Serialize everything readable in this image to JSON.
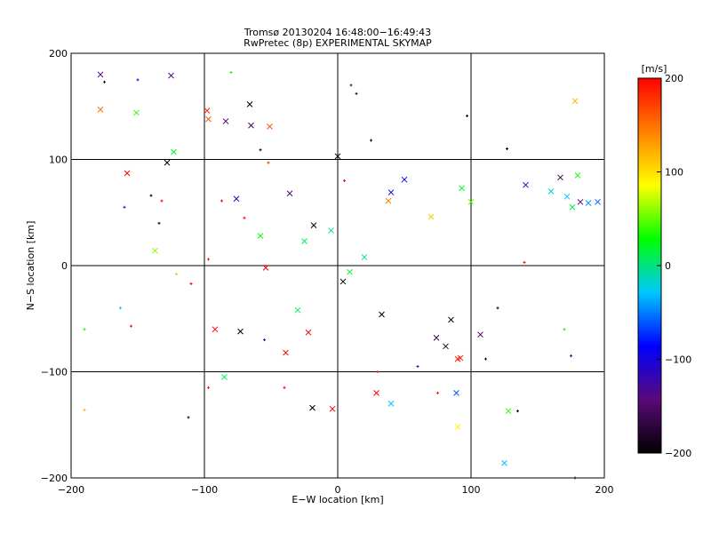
{
  "chart_data": {
    "type": "scatter",
    "title": "Tromsø 20130204 16:48:00−16:49:43",
    "subtitle": "RwPretec (8p) EXPERIMENTAL SKYMAP",
    "xlabel": "E−W location [km]",
    "ylabel": "N−S location [km]",
    "xlim": [
      -200,
      200
    ],
    "ylim": [
      -200,
      200
    ],
    "xticks": [
      -200,
      -100,
      0,
      100,
      200
    ],
    "yticks": [
      -200,
      -100,
      0,
      100,
      200
    ],
    "x_tick_labels": [
      "−200",
      "−100",
      "0",
      "100",
      "200"
    ],
    "y_tick_labels": [
      "−200",
      "−100",
      "0",
      "100",
      "200"
    ],
    "grid": true,
    "markers": [
      "cross",
      "plus"
    ],
    "colorbar": {
      "label": "[m/s]",
      "range": [
        -200,
        200
      ],
      "ticks": [
        200,
        100,
        0,
        -100,
        -200
      ],
      "tick_labels": [
        "200",
        "100",
        "0",
        "−100",
        "−200"
      ],
      "colormap": [
        "#000000",
        "#5a0a78",
        "#0000ff",
        "#00c8ff",
        "#00ff00",
        "#ffff00",
        "#ff8000",
        "#ff0000"
      ]
    },
    "points": [
      {
        "x": -178,
        "y": 180,
        "v": -140,
        "m": "x"
      },
      {
        "x": -125,
        "y": 179,
        "v": -140,
        "m": "x"
      },
      {
        "x": -178,
        "y": 147,
        "v": 150,
        "m": "x"
      },
      {
        "x": -151,
        "y": 144,
        "v": 40,
        "m": "x"
      },
      {
        "x": -98,
        "y": 146,
        "v": 180,
        "m": "x"
      },
      {
        "x": -97,
        "y": 138,
        "v": 160,
        "m": "x"
      },
      {
        "x": -66,
        "y": 152,
        "v": -200,
        "m": "x"
      },
      {
        "x": -65,
        "y": 132,
        "v": -160,
        "m": "x"
      },
      {
        "x": -51,
        "y": 131,
        "v": 170,
        "m": "x"
      },
      {
        "x": -84,
        "y": 136,
        "v": -140,
        "m": "x"
      },
      {
        "x": -158,
        "y": 87,
        "v": 200,
        "m": "x"
      },
      {
        "x": -128,
        "y": 97,
        "v": -200,
        "m": "x"
      },
      {
        "x": -123,
        "y": 107,
        "v": 20,
        "m": "x"
      },
      {
        "x": -36,
        "y": 68,
        "v": -150,
        "m": "x"
      },
      {
        "x": -76,
        "y": 63,
        "v": -110,
        "m": "x"
      },
      {
        "x": -137,
        "y": 14,
        "v": 60,
        "m": "x"
      },
      {
        "x": -18,
        "y": 38,
        "v": -200,
        "m": "x"
      },
      {
        "x": 40,
        "y": 69,
        "v": -100,
        "m": "x"
      },
      {
        "x": 50,
        "y": 81,
        "v": -90,
        "m": "x"
      },
      {
        "x": 38,
        "y": 61,
        "v": 140,
        "m": "x"
      },
      {
        "x": 70,
        "y": 46,
        "v": 110,
        "m": "x"
      },
      {
        "x": 100,
        "y": 60,
        "v": 50,
        "m": "x"
      },
      {
        "x": 93,
        "y": 73,
        "v": 20,
        "m": "x"
      },
      {
        "x": 141,
        "y": 76,
        "v": -120,
        "m": "x"
      },
      {
        "x": 167,
        "y": 83,
        "v": -170,
        "m": "x"
      },
      {
        "x": 180,
        "y": 85,
        "v": 30,
        "m": "x"
      },
      {
        "x": 182,
        "y": 60,
        "v": -140,
        "m": "x"
      },
      {
        "x": 172,
        "y": 65,
        "v": -30,
        "m": "x"
      },
      {
        "x": 176,
        "y": 55,
        "v": 10,
        "m": "x"
      },
      {
        "x": 188,
        "y": 59,
        "v": -40,
        "m": "x"
      },
      {
        "x": 195,
        "y": 60,
        "v": -60,
        "m": "x"
      },
      {
        "x": 178,
        "y": 155,
        "v": 120,
        "m": "x"
      },
      {
        "x": 0,
        "y": 103,
        "v": -190,
        "m": "x"
      },
      {
        "x": -5,
        "y": 33,
        "v": 0,
        "m": "x"
      },
      {
        "x": -54,
        "y": -2,
        "v": 200,
        "m": "x"
      },
      {
        "x": 4,
        "y": -15,
        "v": -200,
        "m": "x"
      },
      {
        "x": -92,
        "y": -60,
        "v": 200,
        "m": "x"
      },
      {
        "x": -73,
        "y": -62,
        "v": -200,
        "m": "x"
      },
      {
        "x": -22,
        "y": -63,
        "v": 200,
        "m": "x"
      },
      {
        "x": -39,
        "y": -82,
        "v": 190,
        "m": "x"
      },
      {
        "x": 33,
        "y": -46,
        "v": -200,
        "m": "x"
      },
      {
        "x": 85,
        "y": -51,
        "v": -200,
        "m": "x"
      },
      {
        "x": 74,
        "y": -68,
        "v": -170,
        "m": "x"
      },
      {
        "x": 81,
        "y": -76,
        "v": -180,
        "m": "x"
      },
      {
        "x": 90,
        "y": -88,
        "v": 190,
        "m": "x"
      },
      {
        "x": 92,
        "y": -87,
        "v": 180,
        "m": "x"
      },
      {
        "x": 107,
        "y": -65,
        "v": -160,
        "m": "x"
      },
      {
        "x": 29,
        "y": -120,
        "v": 200,
        "m": "x"
      },
      {
        "x": 89,
        "y": -120,
        "v": -60,
        "m": "x"
      },
      {
        "x": -4,
        "y": -135,
        "v": 200,
        "m": "x"
      },
      {
        "x": -19,
        "y": -134,
        "v": -200,
        "m": "x"
      },
      {
        "x": 40,
        "y": -130,
        "v": -30,
        "m": "x"
      },
      {
        "x": 128,
        "y": -137,
        "v": 40,
        "m": "x"
      },
      {
        "x": 90,
        "y": -152,
        "v": 90,
        "m": "x"
      },
      {
        "x": 125,
        "y": -186,
        "v": -30,
        "m": "x"
      },
      {
        "x": -85,
        "y": -105,
        "v": 10,
        "m": "x"
      },
      {
        "x": -25,
        "y": 23,
        "v": 10,
        "m": "x"
      },
      {
        "x": 20,
        "y": 8,
        "v": 0,
        "m": "x"
      },
      {
        "x": -58,
        "y": 28,
        "v": 30,
        "m": "x"
      },
      {
        "x": 160,
        "y": 70,
        "v": -20,
        "m": "x"
      },
      {
        "x": 9,
        "y": -6,
        "v": 20,
        "m": "x"
      },
      {
        "x": -30,
        "y": -42,
        "v": 10,
        "m": "x"
      },
      {
        "x": -150,
        "y": 175,
        "v": -80,
        "m": "+"
      },
      {
        "x": -134,
        "y": 40,
        "v": -190,
        "m": "+"
      },
      {
        "x": -175,
        "y": 173,
        "v": -200,
        "m": "+"
      },
      {
        "x": -140,
        "y": 66,
        "v": -200,
        "m": "+"
      },
      {
        "x": -132,
        "y": 61,
        "v": 200,
        "m": "+"
      },
      {
        "x": -160,
        "y": 55,
        "v": -130,
        "m": "+"
      },
      {
        "x": -87,
        "y": 61,
        "v": 200,
        "m": "+"
      },
      {
        "x": -52,
        "y": 97,
        "v": 180,
        "m": "+"
      },
      {
        "x": -58,
        "y": 109,
        "v": -200,
        "m": "+"
      },
      {
        "x": -70,
        "y": 45,
        "v": 200,
        "m": "+"
      },
      {
        "x": -97,
        "y": 6,
        "v": 190,
        "m": "+"
      },
      {
        "x": -121,
        "y": -8,
        "v": 110,
        "m": "+"
      },
      {
        "x": -155,
        "y": -57,
        "v": 200,
        "m": "+"
      },
      {
        "x": -110,
        "y": -17,
        "v": 200,
        "m": "+"
      },
      {
        "x": -163,
        "y": -40,
        "v": -30,
        "m": "+"
      },
      {
        "x": -190,
        "y": -60,
        "v": 20,
        "m": "+"
      },
      {
        "x": -55,
        "y": -70,
        "v": -120,
        "m": "+"
      },
      {
        "x": -97,
        "y": -115,
        "v": 190,
        "m": "+"
      },
      {
        "x": -112,
        "y": -143,
        "v": -180,
        "m": "+"
      },
      {
        "x": -190,
        "y": -136,
        "v": 120,
        "m": "+"
      },
      {
        "x": 135,
        "y": -137,
        "v": -200,
        "m": "+"
      },
      {
        "x": 111,
        "y": -88,
        "v": -200,
        "m": "+"
      },
      {
        "x": 75,
        "y": -120,
        "v": 190,
        "m": "+"
      },
      {
        "x": 170,
        "y": -60,
        "v": 20,
        "m": "+"
      },
      {
        "x": 175,
        "y": -85,
        "v": -140,
        "m": "+"
      },
      {
        "x": 140,
        "y": 3,
        "v": 200,
        "m": "+"
      },
      {
        "x": 127,
        "y": 110,
        "v": -200,
        "m": "+"
      },
      {
        "x": 97,
        "y": 141,
        "v": -200,
        "m": "+"
      },
      {
        "x": 10,
        "y": 170,
        "v": -150,
        "m": "+"
      },
      {
        "x": 14,
        "y": 162,
        "v": -170,
        "m": "+"
      },
      {
        "x": 25,
        "y": 118,
        "v": -200,
        "m": "+"
      },
      {
        "x": 5,
        "y": 80,
        "v": 200,
        "m": "+"
      },
      {
        "x": 30,
        "y": -100,
        "v": 200,
        "m": "+"
      },
      {
        "x": 60,
        "y": -95,
        "v": -120,
        "m": "+"
      },
      {
        "x": -40,
        "y": -115,
        "v": 200,
        "m": "+"
      },
      {
        "x": 178,
        "y": -200,
        "v": -200,
        "m": "+"
      },
      {
        "x": 120,
        "y": -40,
        "v": -180,
        "m": "+"
      },
      {
        "x": -80,
        "y": 182,
        "v": 30,
        "m": "+"
      }
    ]
  }
}
